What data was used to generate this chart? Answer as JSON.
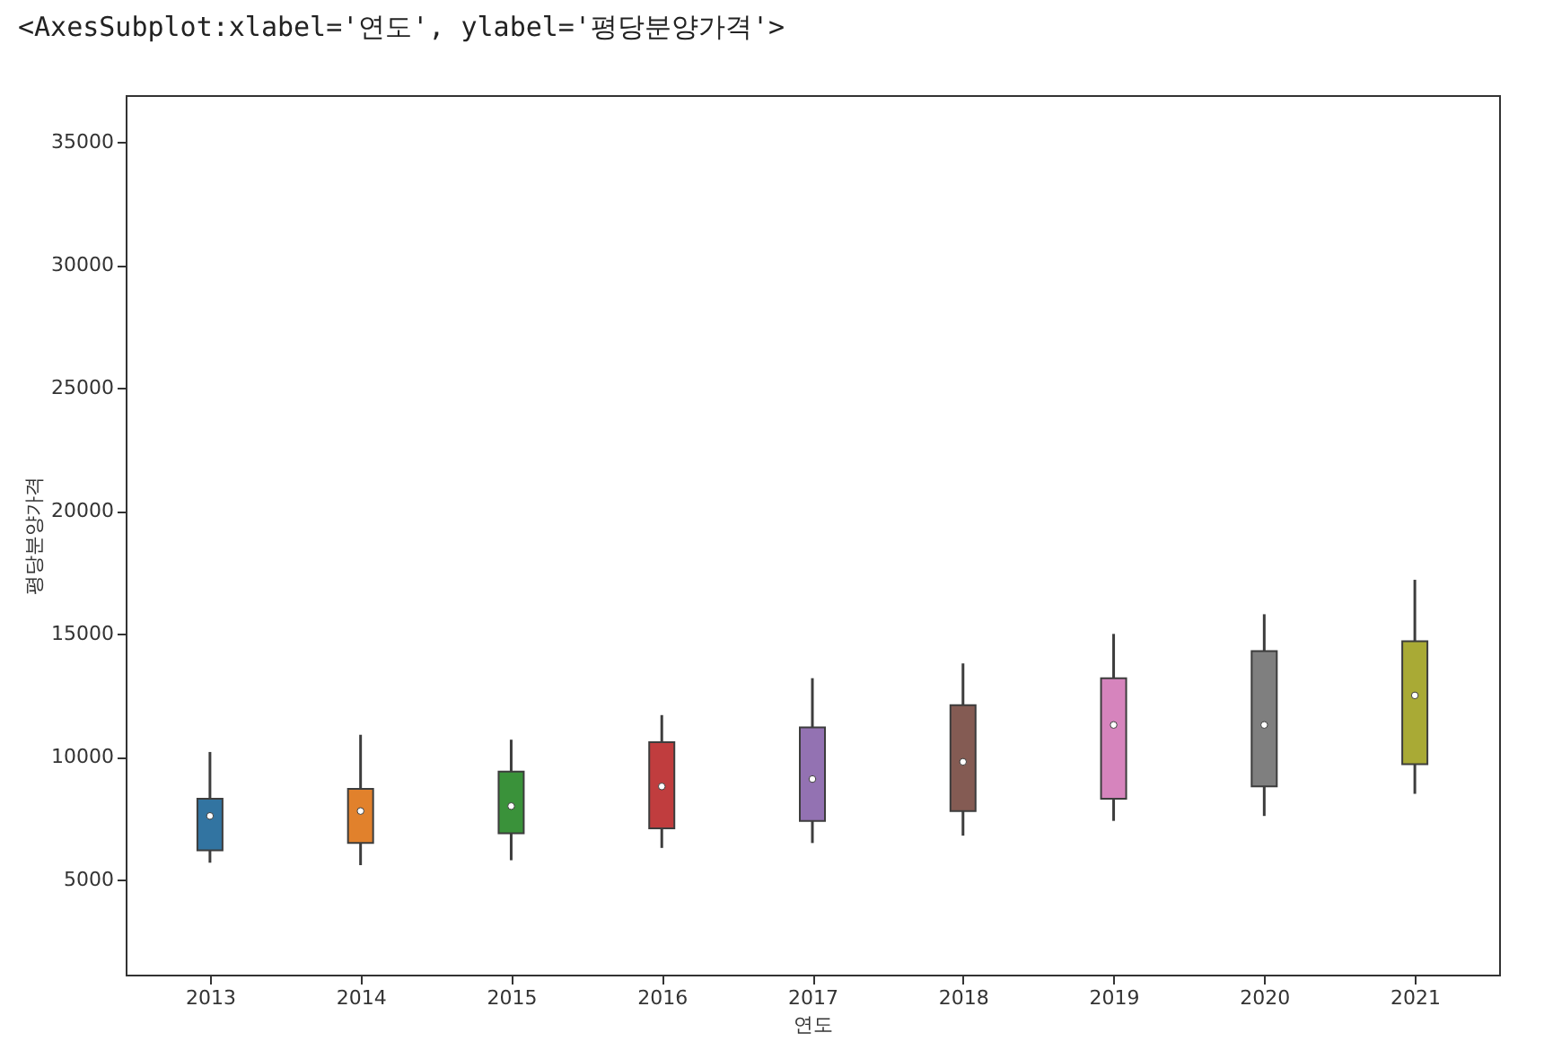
{
  "chart_data": {
    "type": "box",
    "title": "<AxesSubplot:xlabel='연도', ylabel='평당분양가격'>",
    "xlabel": "연도",
    "ylabel": "평당분양가격",
    "categories": [
      "2013",
      "2014",
      "2015",
      "2016",
      "2017",
      "2018",
      "2019",
      "2020",
      "2021"
    ],
    "colors": [
      "#3274a1",
      "#e1812c",
      "#3a923a",
      "#c03d3e",
      "#9372b2",
      "#845b53",
      "#d684bd",
      "#7f7f7f",
      "#a9aa35"
    ],
    "boxes": [
      {
        "low": 5700,
        "q1": 6200,
        "median": 7600,
        "q3": 8300,
        "high": 10200
      },
      {
        "low": 5600,
        "q1": 6500,
        "median": 7800,
        "q3": 8700,
        "high": 10900
      },
      {
        "low": 5800,
        "q1": 6900,
        "median": 8000,
        "q3": 9400,
        "high": 10700
      },
      {
        "low": 6300,
        "q1": 7100,
        "median": 8800,
        "q3": 10600,
        "high": 11700
      },
      {
        "low": 6500,
        "q1": 7400,
        "median": 9100,
        "q3": 11200,
        "high": 13200
      },
      {
        "low": 6800,
        "q1": 7800,
        "median": 9800,
        "q3": 12100,
        "high": 13800
      },
      {
        "low": 7400,
        "q1": 8300,
        "median": 11300,
        "q3": 13200,
        "high": 15000
      },
      {
        "low": 7600,
        "q1": 8800,
        "median": 11300,
        "q3": 14300,
        "high": 15800
      },
      {
        "low": 8500,
        "q1": 9700,
        "median": 12500,
        "q3": 14700,
        "high": 17200
      }
    ],
    "ylim": [
      1150,
      36900
    ],
    "yticks": [
      5000,
      10000,
      15000,
      20000,
      25000,
      30000,
      35000
    ],
    "grid": false,
    "legend": false
  }
}
